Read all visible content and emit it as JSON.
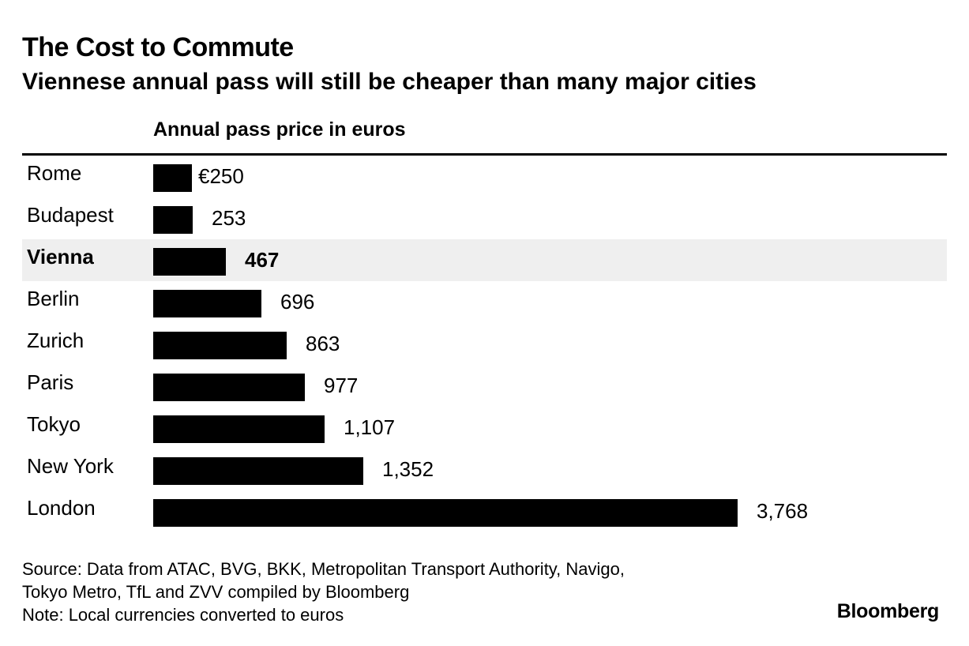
{
  "chart_data": {
    "type": "bar",
    "orientation": "horizontal",
    "title": "The Cost to Commute",
    "subtitle": "Viennese annual pass will still be cheaper than many major cities",
    "column_header": "Annual pass price in euros",
    "highlight": "Vienna",
    "bar_color": "#000000",
    "highlight_background": "#efefef",
    "categories": [
      "Rome",
      "Budapest",
      "Vienna",
      "Berlin",
      "Zurich",
      "Paris",
      "Tokyo",
      "New York",
      "London"
    ],
    "values": [
      250,
      253,
      467,
      696,
      863,
      977,
      1107,
      1352,
      3768
    ],
    "value_labels": [
      "€250",
      "253",
      "467",
      "696",
      "863",
      "977",
      "1,107",
      "1,352",
      "3,768"
    ],
    "xlim": [
      0,
      3768
    ]
  },
  "footer": {
    "source_lines": [
      "Source: Data from ATAC, BVG, BKK, Metropolitan Transport Authority, Navigo,",
      "Tokyo Metro, TfL and ZVV compiled by Bloomberg",
      "Note: Local currencies converted to euros"
    ],
    "brand": "Bloomberg"
  }
}
